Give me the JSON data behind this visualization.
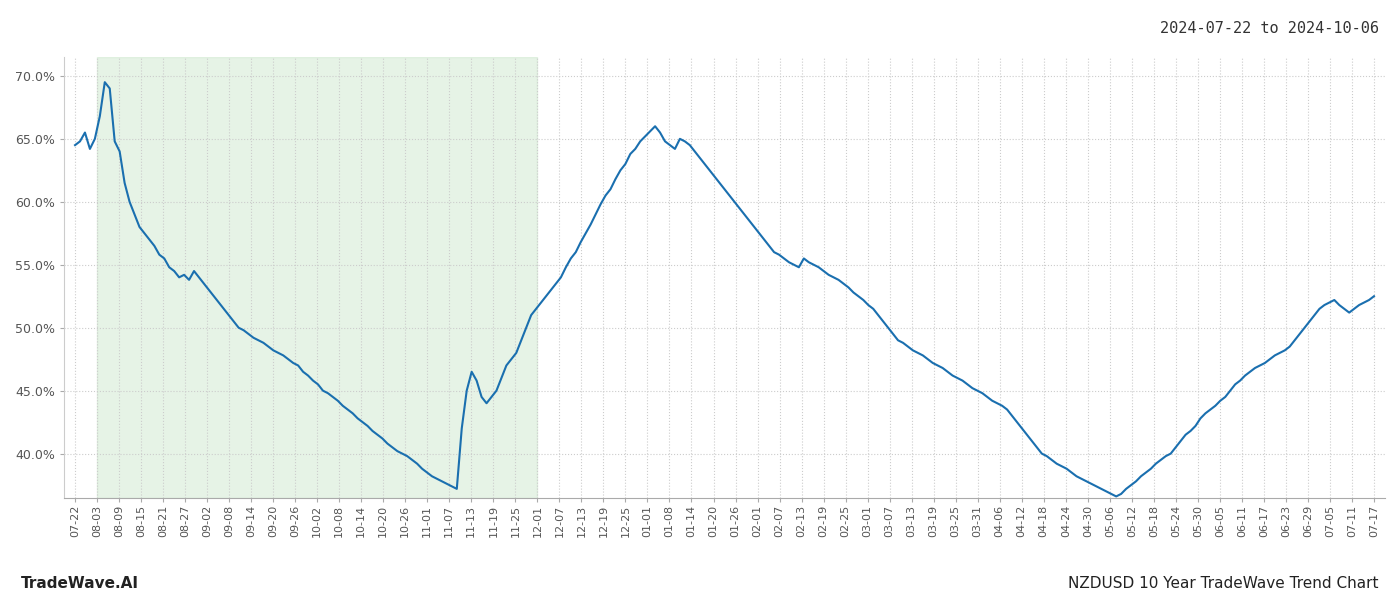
{
  "title_top_right": "2024-07-22 to 2024-10-06",
  "label_bottom_left": "TradeWave.AI",
  "label_bottom_right": "NZDUSD 10 Year TradeWave Trend Chart",
  "line_color": "#1a6faf",
  "shade_color": "#c8e6c9",
  "shade_alpha": 0.45,
  "background_color": "#ffffff",
  "grid_color": "#cccccc",
  "ylim": [
    0.365,
    0.715
  ],
  "yticks": [
    0.4,
    0.45,
    0.5,
    0.55,
    0.6,
    0.65,
    0.7
  ],
  "x_labels": [
    "07-22",
    "08-03",
    "08-09",
    "08-15",
    "08-21",
    "08-27",
    "09-02",
    "09-08",
    "09-14",
    "09-20",
    "09-26",
    "10-02",
    "10-08",
    "10-14",
    "10-20",
    "10-26",
    "11-01",
    "11-07",
    "11-13",
    "11-19",
    "11-25",
    "12-01",
    "12-07",
    "12-13",
    "12-19",
    "12-25",
    "01-01",
    "01-08",
    "01-14",
    "01-20",
    "01-26",
    "02-01",
    "02-07",
    "02-13",
    "02-19",
    "02-25",
    "03-01",
    "03-07",
    "03-13",
    "03-19",
    "03-25",
    "03-31",
    "04-06",
    "04-12",
    "04-18",
    "04-24",
    "04-30",
    "05-06",
    "05-12",
    "05-18",
    "05-24",
    "05-30",
    "06-05",
    "06-11",
    "06-17",
    "06-23",
    "06-29",
    "07-05",
    "07-11",
    "07-17"
  ],
  "shade_x_start_label": "08-03",
  "shade_x_end_label": "12-01",
  "y_values": [
    0.645,
    0.648,
    0.655,
    0.642,
    0.65,
    0.668,
    0.695,
    0.69,
    0.648,
    0.64,
    0.615,
    0.6,
    0.59,
    0.58,
    0.575,
    0.57,
    0.565,
    0.558,
    0.555,
    0.548,
    0.545,
    0.54,
    0.542,
    0.538,
    0.545,
    0.54,
    0.535,
    0.53,
    0.525,
    0.52,
    0.515,
    0.51,
    0.505,
    0.5,
    0.498,
    0.495,
    0.492,
    0.49,
    0.488,
    0.485,
    0.482,
    0.48,
    0.478,
    0.475,
    0.472,
    0.47,
    0.465,
    0.462,
    0.458,
    0.455,
    0.45,
    0.448,
    0.445,
    0.442,
    0.438,
    0.435,
    0.432,
    0.428,
    0.425,
    0.422,
    0.418,
    0.415,
    0.412,
    0.408,
    0.405,
    0.402,
    0.4,
    0.398,
    0.395,
    0.392,
    0.388,
    0.385,
    0.382,
    0.38,
    0.378,
    0.376,
    0.374,
    0.372,
    0.42,
    0.45,
    0.465,
    0.458,
    0.445,
    0.44,
    0.445,
    0.45,
    0.46,
    0.47,
    0.475,
    0.48,
    0.49,
    0.5,
    0.51,
    0.515,
    0.52,
    0.525,
    0.53,
    0.535,
    0.54,
    0.548,
    0.555,
    0.56,
    0.568,
    0.575,
    0.582,
    0.59,
    0.598,
    0.605,
    0.61,
    0.618,
    0.625,
    0.63,
    0.638,
    0.642,
    0.648,
    0.652,
    0.656,
    0.66,
    0.655,
    0.648,
    0.645,
    0.642,
    0.65,
    0.648,
    0.645,
    0.64,
    0.635,
    0.63,
    0.625,
    0.62,
    0.615,
    0.61,
    0.605,
    0.6,
    0.595,
    0.59,
    0.585,
    0.58,
    0.575,
    0.57,
    0.565,
    0.56,
    0.558,
    0.555,
    0.552,
    0.55,
    0.548,
    0.555,
    0.552,
    0.55,
    0.548,
    0.545,
    0.542,
    0.54,
    0.538,
    0.535,
    0.532,
    0.528,
    0.525,
    0.522,
    0.518,
    0.515,
    0.51,
    0.505,
    0.5,
    0.495,
    0.49,
    0.488,
    0.485,
    0.482,
    0.48,
    0.478,
    0.475,
    0.472,
    0.47,
    0.468,
    0.465,
    0.462,
    0.46,
    0.458,
    0.455,
    0.452,
    0.45,
    0.448,
    0.445,
    0.442,
    0.44,
    0.438,
    0.435,
    0.43,
    0.425,
    0.42,
    0.415,
    0.41,
    0.405,
    0.4,
    0.398,
    0.395,
    0.392,
    0.39,
    0.388,
    0.385,
    0.382,
    0.38,
    0.378,
    0.376,
    0.374,
    0.372,
    0.37,
    0.368,
    0.366,
    0.368,
    0.372,
    0.375,
    0.378,
    0.382,
    0.385,
    0.388,
    0.392,
    0.395,
    0.398,
    0.4,
    0.405,
    0.41,
    0.415,
    0.418,
    0.422,
    0.428,
    0.432,
    0.435,
    0.438,
    0.442,
    0.445,
    0.45,
    0.455,
    0.458,
    0.462,
    0.465,
    0.468,
    0.47,
    0.472,
    0.475,
    0.478,
    0.48,
    0.482,
    0.485,
    0.49,
    0.495,
    0.5,
    0.505,
    0.51,
    0.515,
    0.518,
    0.52,
    0.522,
    0.518,
    0.515,
    0.512,
    0.515,
    0.518,
    0.52,
    0.522,
    0.525
  ],
  "line_width": 1.5,
  "font_size_ticks": 9,
  "font_size_labels": 11,
  "font_size_title": 11
}
